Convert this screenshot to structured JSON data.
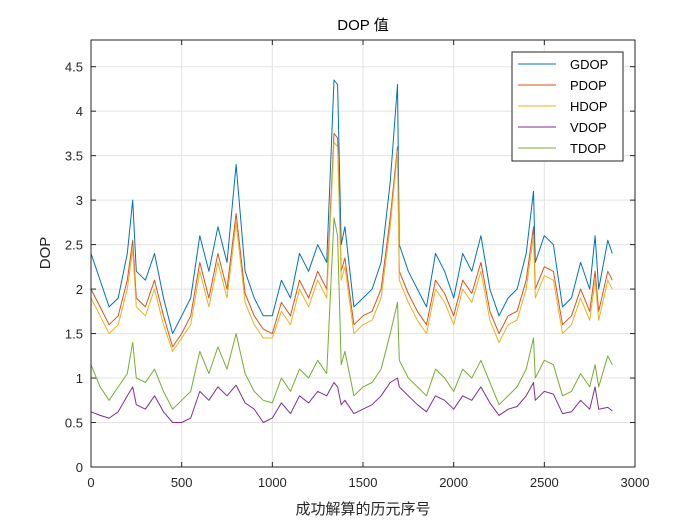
{
  "chart_data": {
    "type": "line",
    "title": "DOP 值",
    "xlabel": "成功解算的历元序号",
    "ylabel": "DOP",
    "xlim": [
      0,
      3000
    ],
    "ylim": [
      0,
      4.8
    ],
    "xticks": [
      0,
      500,
      1000,
      1500,
      2000,
      2500,
      3000
    ],
    "yticks": [
      0,
      0.5,
      1,
      1.5,
      2,
      2.5,
      3,
      3.5,
      4,
      4.5
    ],
    "xtick_labels": [
      "0",
      "500",
      "1000",
      "1500",
      "2000",
      "2500",
      "3000"
    ],
    "ytick_labels": [
      "0",
      "0.5",
      "1",
      "1.5",
      "2",
      "2.5",
      "3",
      "3.5",
      "4",
      "4.5"
    ],
    "grid": true,
    "legend_position": "top-right",
    "x": [
      0,
      50,
      100,
      150,
      200,
      230,
      250,
      300,
      350,
      400,
      450,
      500,
      550,
      600,
      650,
      700,
      750,
      800,
      850,
      900,
      950,
      1000,
      1050,
      1100,
      1150,
      1200,
      1250,
      1300,
      1340,
      1360,
      1380,
      1400,
      1450,
      1500,
      1550,
      1600,
      1650,
      1690,
      1700,
      1750,
      1800,
      1850,
      1900,
      1950,
      2000,
      2050,
      2100,
      2150,
      2200,
      2250,
      2300,
      2350,
      2400,
      2440,
      2450,
      2500,
      2550,
      2600,
      2650,
      2700,
      2750,
      2780,
      2800,
      2850,
      2875
    ],
    "series": [
      {
        "name": "GDOP",
        "color": "#0072BD",
        "values": [
          2.4,
          2.1,
          1.8,
          1.9,
          2.4,
          3.0,
          2.2,
          2.1,
          2.4,
          1.9,
          1.5,
          1.7,
          1.9,
          2.6,
          2.2,
          2.7,
          2.3,
          3.4,
          2.2,
          1.9,
          1.7,
          1.7,
          2.1,
          1.9,
          2.4,
          2.2,
          2.5,
          2.3,
          4.35,
          4.3,
          2.5,
          2.7,
          1.8,
          1.9,
          2.0,
          2.3,
          3.2,
          4.3,
          2.5,
          2.2,
          2.0,
          1.8,
          2.4,
          2.2,
          1.9,
          2.4,
          2.2,
          2.6,
          2.0,
          1.7,
          1.9,
          2.0,
          2.4,
          3.1,
          2.3,
          2.6,
          2.5,
          1.8,
          1.9,
          2.3,
          2.0,
          2.6,
          2.0,
          2.55,
          2.4
        ]
      },
      {
        "name": "PDOP",
        "color": "#D95319",
        "values": [
          2.0,
          1.8,
          1.6,
          1.7,
          2.1,
          2.55,
          1.9,
          1.8,
          2.1,
          1.7,
          1.35,
          1.5,
          1.7,
          2.3,
          1.9,
          2.4,
          2.0,
          2.85,
          1.95,
          1.7,
          1.55,
          1.5,
          1.85,
          1.7,
          2.1,
          1.9,
          2.2,
          2.0,
          3.75,
          3.7,
          2.2,
          2.35,
          1.6,
          1.7,
          1.75,
          2.0,
          2.8,
          3.6,
          2.2,
          1.95,
          1.75,
          1.6,
          2.1,
          1.95,
          1.7,
          2.1,
          1.95,
          2.3,
          1.75,
          1.5,
          1.7,
          1.75,
          2.1,
          2.7,
          2.0,
          2.25,
          2.2,
          1.6,
          1.7,
          2.0,
          1.75,
          2.2,
          1.75,
          2.2,
          2.1
        ]
      },
      {
        "name": "HDOP",
        "color": "#EDB120",
        "values": [
          1.9,
          1.7,
          1.5,
          1.6,
          2.0,
          2.45,
          1.8,
          1.7,
          2.0,
          1.6,
          1.3,
          1.45,
          1.6,
          2.2,
          1.8,
          2.3,
          1.9,
          2.75,
          1.85,
          1.6,
          1.45,
          1.45,
          1.75,
          1.6,
          2.0,
          1.8,
          2.1,
          1.9,
          3.65,
          3.6,
          2.1,
          2.25,
          1.5,
          1.6,
          1.65,
          1.9,
          2.7,
          3.55,
          2.1,
          1.85,
          1.65,
          1.5,
          2.0,
          1.85,
          1.6,
          2.0,
          1.85,
          2.2,
          1.65,
          1.4,
          1.6,
          1.65,
          2.0,
          2.6,
          1.9,
          2.15,
          2.1,
          1.5,
          1.6,
          1.9,
          1.65,
          2.1,
          1.65,
          2.1,
          2.0
        ]
      },
      {
        "name": "VDOP",
        "color": "#7E2F8E",
        "values": [
          0.62,
          0.58,
          0.55,
          0.62,
          0.8,
          0.9,
          0.7,
          0.65,
          0.8,
          0.62,
          0.5,
          0.5,
          0.55,
          0.85,
          0.75,
          0.9,
          0.8,
          0.92,
          0.72,
          0.65,
          0.5,
          0.55,
          0.72,
          0.6,
          0.8,
          0.72,
          0.85,
          0.8,
          0.95,
          0.9,
          0.7,
          0.75,
          0.6,
          0.65,
          0.7,
          0.8,
          0.95,
          1.0,
          0.9,
          0.8,
          0.7,
          0.62,
          0.8,
          0.75,
          0.65,
          0.8,
          0.75,
          0.9,
          0.72,
          0.58,
          0.65,
          0.68,
          0.8,
          0.95,
          0.75,
          0.85,
          0.82,
          0.6,
          0.62,
          0.75,
          0.65,
          0.9,
          0.65,
          0.67,
          0.63
        ]
      },
      {
        "name": "TDOP",
        "color": "#77AC30",
        "values": [
          1.15,
          0.9,
          0.75,
          0.9,
          1.05,
          1.4,
          1.0,
          0.95,
          1.1,
          0.85,
          0.65,
          0.75,
          0.85,
          1.3,
          1.05,
          1.35,
          1.1,
          1.5,
          1.05,
          0.85,
          0.75,
          0.72,
          1.0,
          0.85,
          1.1,
          1.0,
          1.2,
          1.05,
          2.8,
          2.6,
          1.15,
          1.3,
          0.8,
          0.9,
          0.95,
          1.1,
          1.5,
          1.85,
          1.2,
          1.0,
          0.9,
          0.8,
          1.1,
          1.0,
          0.85,
          1.1,
          1.0,
          1.2,
          0.95,
          0.7,
          0.8,
          0.9,
          1.1,
          1.45,
          1.0,
          1.2,
          1.15,
          0.8,
          0.85,
          1.05,
          0.9,
          1.15,
          0.9,
          1.25,
          1.15
        ]
      }
    ]
  }
}
